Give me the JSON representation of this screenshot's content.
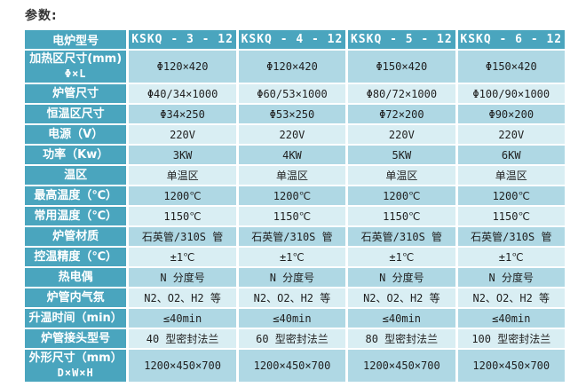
{
  "page": {
    "title": "参数:"
  },
  "colors": {
    "header_bg": "#4aa5be",
    "row_shade_dark": "#afd8e4",
    "row_shade_light": "#d9eef3",
    "header_text": "#ffffff",
    "cell_text": "#1f1f1f"
  },
  "table": {
    "header": {
      "label": "电炉型号",
      "models": [
        "KSKQ - 3 - 12",
        "KSKQ - 4 - 12",
        "KSKQ - 5 - 12",
        "KSKQ - 6 - 12"
      ]
    },
    "rows": [
      {
        "label": "加热区尺寸(mm)",
        "sublabel": "Φ×L",
        "values": [
          "Φ120×420",
          "Φ120×420",
          "Φ150×420",
          "Φ150×420"
        ]
      },
      {
        "label": "炉管尺寸",
        "values": [
          "Φ40/34×1000",
          "Φ60/53×1000",
          "Φ80/72×1000",
          "Φ100/90×1000"
        ]
      },
      {
        "label": "恒温区尺寸",
        "values": [
          "Φ34×250",
          "Φ53×250",
          "Φ72×200",
          "Φ90×200"
        ]
      },
      {
        "label": "电源（V）",
        "values": [
          "220V",
          "220V",
          "220V",
          "220V"
        ]
      },
      {
        "label": "功率（Kw）",
        "values": [
          "3KW",
          "4KW",
          "5KW",
          "6KW"
        ]
      },
      {
        "label": "温区",
        "values": [
          "单温区",
          "单温区",
          "单温区",
          "单温区"
        ]
      },
      {
        "label": "最高温度（℃）",
        "values": [
          "1200℃",
          "1200℃",
          "1200℃",
          "1200℃"
        ]
      },
      {
        "label": "常用温度（℃）",
        "values": [
          "1150℃",
          "1150℃",
          "1150℃",
          "1150℃"
        ]
      },
      {
        "label": "炉管材质",
        "values": [
          "石英管/310S 管",
          "石英管/310S 管",
          "石英管/310S 管",
          "石英管/310S 管"
        ]
      },
      {
        "label": "控温精度（℃）",
        "values": [
          "±1℃",
          "±1℃",
          "±1℃",
          "±1℃"
        ]
      },
      {
        "label": "热电偶",
        "values": [
          "N 分度号",
          "N 分度号",
          "N 分度号",
          "N 分度号"
        ]
      },
      {
        "label": "炉管内气氛",
        "values": [
          "N2、O2、H2 等",
          "N2、O2、H2 等",
          "N2、O2、H2 等",
          "N2、O2、H2 等"
        ]
      },
      {
        "label": "升温时间（min）",
        "values": [
          "≤40min",
          "≤40min",
          "≤40min",
          "≤40min"
        ]
      },
      {
        "label": "炉管接头型号",
        "values": [
          "40 型密封法兰",
          "60 型密封法兰",
          "80 型密封法兰",
          "100 型密封法兰"
        ]
      },
      {
        "label": "外形尺寸（mm）",
        "sublabel": "D×W×H",
        "values": [
          "1200×450×700",
          "1200×450×700",
          "1200×450×700",
          "1200×450×700"
        ]
      }
    ]
  }
}
